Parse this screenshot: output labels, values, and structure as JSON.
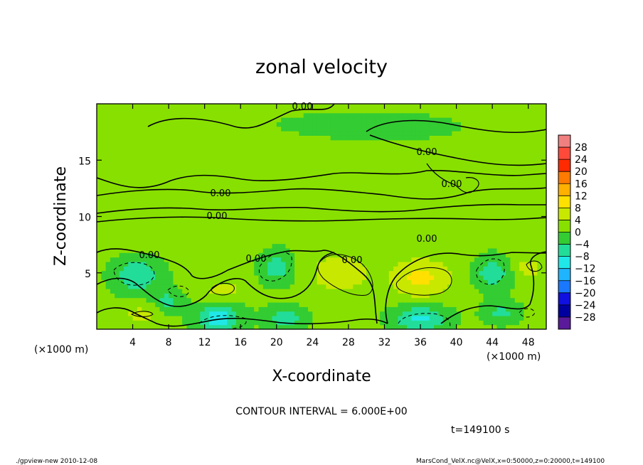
{
  "chart_data": {
    "type": "heatmap",
    "title": "zonal velocity",
    "xlabel": "X-coordinate",
    "ylabel": "Z-coordinate",
    "x_unit_left": "(×1000 m)",
    "x_unit_right": "(×1000 m)",
    "xlim": [
      0,
      50
    ],
    "ylim": [
      0,
      20
    ],
    "x_ticks": [
      4,
      8,
      12,
      16,
      20,
      24,
      28,
      32,
      36,
      40,
      44,
      48
    ],
    "y_ticks": [
      5,
      10,
      15
    ],
    "colorbar": {
      "levels": [
        28,
        24,
        20,
        16,
        12,
        8,
        4,
        0,
        -4,
        -8,
        -12,
        -16,
        -20,
        -24,
        -28
      ],
      "level_labels": [
        "28",
        "24",
        "20",
        "16",
        "12",
        "8",
        "4",
        "0",
        "−4",
        "−8",
        "−12",
        "−16",
        "−20",
        "−24",
        "−28"
      ],
      "colors": [
        "#f08080",
        "#ff4a3a",
        "#ff2a00",
        "#ff7a00",
        "#ffb000",
        "#ffe000",
        "#c8e800",
        "#88e000",
        "#33cc33",
        "#22dd99",
        "#20e8e8",
        "#1fb4ff",
        "#1a78ff",
        "#1010e0",
        "#0000a0",
        "#5a1a9a"
      ]
    },
    "contour_labels": [
      "0.00",
      "0.00",
      "0.00",
      "0.00",
      "0.00",
      "0.00",
      "0.00",
      "0.00",
      "0.00"
    ],
    "blobs": [
      {
        "x": 4.5,
        "z": 4.8,
        "v": -9,
        "rx": 2.6,
        "rz": 1.5
      },
      {
        "x": 8,
        "z": 2.5,
        "v": -6,
        "rx": 1.6,
        "rz": 1.0
      },
      {
        "x": 13.5,
        "z": 1.0,
        "v": -11,
        "rx": 2.5,
        "rz": 1.3
      },
      {
        "x": 20,
        "z": 5.5,
        "v": -7,
        "rx": 1.8,
        "rz": 1.5
      },
      {
        "x": 14,
        "z": 3.5,
        "v": 5,
        "rx": 2.0,
        "rz": 1.0
      },
      {
        "x": 27,
        "z": 5.0,
        "v": 7,
        "rx": 3.0,
        "rz": 1.6
      },
      {
        "x": 21,
        "z": 1.0,
        "v": -8,
        "rx": 2.2,
        "rz": 1.0
      },
      {
        "x": 36,
        "z": 4.5,
        "v": 8,
        "rx": 3.5,
        "rz": 1.8
      },
      {
        "x": 36,
        "z": 1.0,
        "v": -10,
        "rx": 3.0,
        "rz": 1.2
      },
      {
        "x": 44,
        "z": 5.0,
        "v": -8,
        "rx": 2.0,
        "rz": 1.4
      },
      {
        "x": 45,
        "z": 1.5,
        "v": -6,
        "rx": 2.0,
        "rz": 1.0
      },
      {
        "x": 48,
        "z": 5.5,
        "v": 5,
        "rx": 1.5,
        "rz": 1.0
      },
      {
        "x": 5,
        "z": 1.3,
        "v": 5,
        "rx": 2.0,
        "rz": 0.8
      },
      {
        "x": 10,
        "z": 8.0,
        "v": 3,
        "rx": 6,
        "rz": 1.0
      },
      {
        "x": 25,
        "z": 9.5,
        "v": 3,
        "rx": 12,
        "rz": 1.0
      },
      {
        "x": 30,
        "z": 18.0,
        "v": -3,
        "rx": 10,
        "rz": 1.3
      },
      {
        "x": 20,
        "z": 15.5,
        "v": 2,
        "rx": 8,
        "rz": 1.5
      }
    ]
  },
  "footer": {
    "contour_interval": "CONTOUR INTERVAL = 6.000E+00",
    "time": "t=149100 s",
    "program": "./gpview-new   2010-12-08",
    "source": "MarsCond_VelX.nc@VelX,x=0:50000,z=0:20000,t=149100"
  }
}
